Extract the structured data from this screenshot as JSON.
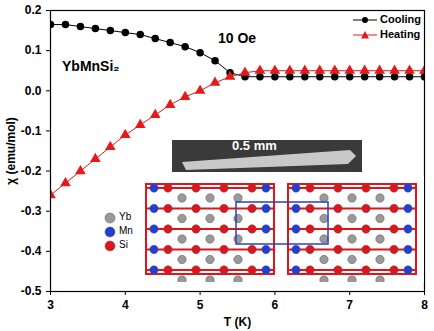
{
  "chart_data": {
    "type": "line",
    "xlabel": "T (K)",
    "ylabel": "χ (emu/mol)",
    "xlim": [
      3,
      8
    ],
    "ylim": [
      -0.5,
      0.2
    ],
    "xticks": [
      3,
      4,
      5,
      6,
      7,
      8
    ],
    "yticks": [
      -0.5,
      -0.4,
      -0.3,
      -0.2,
      -0.1,
      {
        "value": 0,
        "label": "0.0"
      },
      0.1,
      0.2
    ],
    "legend": "upper right",
    "x": [
      3,
      3.2,
      3.4,
      3.6,
      3.8,
      4,
      4.2,
      4.4,
      4.6,
      4.8,
      5,
      5.2,
      5.4,
      5.6,
      5.8,
      6,
      6.2,
      6.4,
      6.6,
      6.8,
      7,
      7.2,
      7.4,
      7.6,
      7.8,
      8
    ],
    "series": [
      {
        "name": "Cooling",
        "color": "#000000",
        "marker": "circle",
        "values": [
          0.165,
          0.165,
          0.16,
          0.155,
          0.15,
          0.145,
          0.14,
          0.13,
          0.12,
          0.11,
          0.095,
          0.075,
          0.045,
          0.035,
          0.035,
          0.035,
          0.035,
          0.035,
          0.035,
          0.035,
          0.035,
          0.035,
          0.035,
          0.035,
          0.035,
          0.035
        ]
      },
      {
        "name": "Heating",
        "color": "#e41a1c",
        "marker": "triangle",
        "values": [
          -0.26,
          -0.23,
          -0.2,
          -0.17,
          -0.14,
          -0.11,
          -0.085,
          -0.06,
          -0.035,
          -0.015,
          0,
          0.02,
          0.035,
          0.045,
          0.05,
          0.05,
          0.05,
          0.05,
          0.05,
          0.05,
          0.05,
          0.05,
          0.05,
          0.05,
          0.05,
          0.05
        ]
      }
    ],
    "annotations": [
      "10 Oe",
      "YbMnSi₂"
    ],
    "inset": {
      "scale_bar": "0.5 mm",
      "atoms": [
        {
          "label": "Yb",
          "color": "#999999"
        },
        {
          "label": "Mn",
          "color": "#1f3fd6"
        },
        {
          "label": "Si",
          "color": "#e0141a"
        }
      ]
    }
  }
}
